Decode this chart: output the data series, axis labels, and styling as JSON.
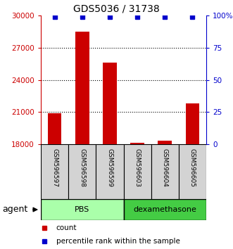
{
  "title": "GDS5036 / 31738",
  "samples": [
    "GSM596597",
    "GSM596598",
    "GSM596599",
    "GSM596603",
    "GSM596604",
    "GSM596605"
  ],
  "counts": [
    20900,
    28500,
    25600,
    18100,
    18300,
    21800
  ],
  "percentile_ranks": [
    99,
    99,
    99,
    99,
    99,
    99
  ],
  "ylim_left": [
    18000,
    30000
  ],
  "ylim_right": [
    0,
    100
  ],
  "yticks_left": [
    18000,
    21000,
    24000,
    27000,
    30000
  ],
  "yticks_right": [
    0,
    25,
    50,
    75,
    100
  ],
  "bar_color": "#CC0000",
  "dot_color": "#0000CC",
  "bar_width": 0.5,
  "legend_count_label": "count",
  "legend_pct_label": "percentile rank within the sample",
  "agent_label": "agent",
  "left_axis_color": "#CC0000",
  "right_axis_color": "#0000CC",
  "grid_linestyle": "dotted",
  "bg_plot": "white",
  "bg_xtick": "#D3D3D3",
  "pbs_color": "#AAFFAA",
  "dex_color": "#44CC44",
  "title_fontsize": 10
}
